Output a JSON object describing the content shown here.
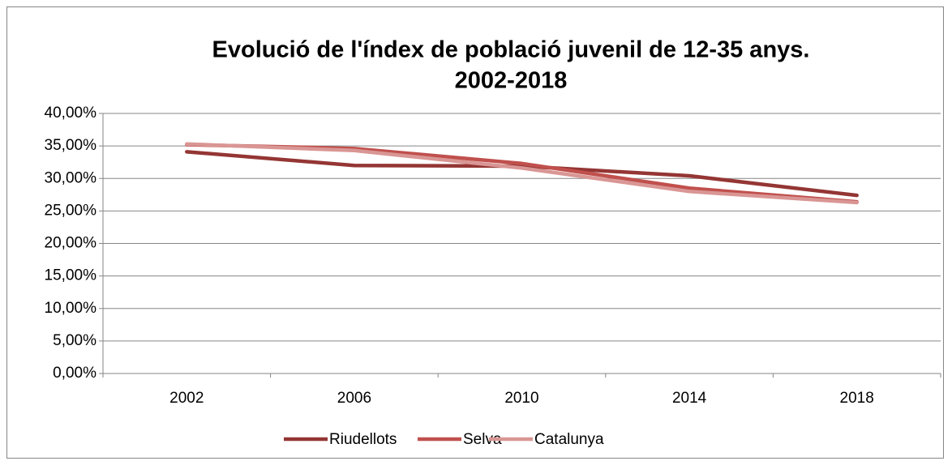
{
  "chart_data": {
    "type": "line",
    "title": [
      "Evolució de l'índex de població juvenil de 12-35 anys.",
      "2002-2018"
    ],
    "categories": [
      "2002",
      "2006",
      "2010",
      "2014",
      "2018"
    ],
    "series": [
      {
        "name": "Riudellots",
        "color": "#943634",
        "values": [
          34.1,
          32.0,
          31.9,
          30.4,
          27.4
        ]
      },
      {
        "name": "Selva",
        "color": "#c0504d",
        "values": [
          35.2,
          34.6,
          32.3,
          28.5,
          26.4
        ]
      },
      {
        "name": "Catalunya",
        "color": "#d99694",
        "values": [
          35.3,
          34.3,
          31.6,
          28.0,
          26.3
        ]
      }
    ],
    "ylim": [
      0,
      40
    ],
    "yticks": [
      {
        "value": 0,
        "label": "0,00%"
      },
      {
        "value": 5,
        "label": "5,00%"
      },
      {
        "value": 10,
        "label": "10,00%"
      },
      {
        "value": 15,
        "label": "15,00%"
      },
      {
        "value": 20,
        "label": "20,00%"
      },
      {
        "value": 25,
        "label": "25,00%"
      },
      {
        "value": 30,
        "label": "30,00%"
      },
      {
        "value": 35,
        "label": "35,00%"
      },
      {
        "value": 40,
        "label": "40,00%"
      }
    ],
    "grid": true,
    "legend": "bottom"
  }
}
